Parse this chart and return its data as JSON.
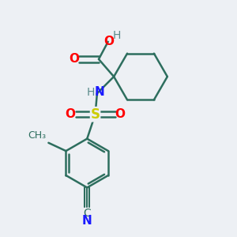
{
  "bg_color": "#edf0f4",
  "bond_color": "#2d6e5e",
  "atom_colors": {
    "O": "#ff0000",
    "N": "#1a1aff",
    "S": "#cccc00",
    "H": "#5a8a8a",
    "C_cn": "#1a1aff"
  },
  "font_size": 10,
  "fig_size": [
    3.0,
    3.0
  ],
  "dpi": 100
}
